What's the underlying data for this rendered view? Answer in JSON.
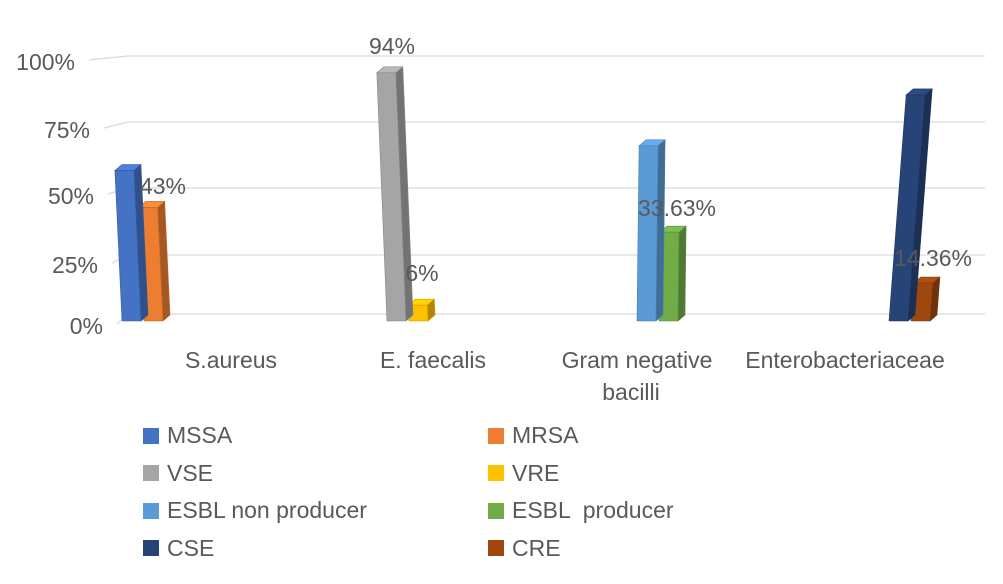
{
  "chart_data": {
    "type": "bar",
    "style": "3d-clustered-column",
    "title": "",
    "xlabel": "",
    "ylabel": "",
    "ylim": [
      0,
      100
    ],
    "yticks": [
      "0%",
      "25%",
      "50%",
      "75%",
      "100%"
    ],
    "grid": true,
    "legend_position": "bottom-two-columns",
    "text_color": "#595959",
    "gridline_color": "#D9D9D9",
    "background_color": "#FFFFFF",
    "categories": [
      "S.aureus",
      "E. faecalis",
      "Gram negative bacilli",
      "Enterobacteriaceae"
    ],
    "series": [
      {
        "name": "MSSA",
        "color": "#4472C4",
        "category_index": 0,
        "value": 57,
        "data_label": ""
      },
      {
        "name": "MRSA",
        "color": "#ED7D31",
        "category_index": 0,
        "value": 43,
        "data_label": "43%"
      },
      {
        "name": "VSE",
        "color": "#A5A5A5",
        "category_index": 1,
        "value": 94,
        "data_label": "94%"
      },
      {
        "name": "VRE",
        "color": "#FFC000",
        "category_index": 1,
        "value": 6,
        "data_label": "6%"
      },
      {
        "name": "ESBL non producer",
        "color": "#5B9BD5",
        "category_index": 2,
        "value": 66.37,
        "data_label": ""
      },
      {
        "name": "ESBL  producer",
        "color": "#70AD47",
        "category_index": 2,
        "value": 33.63,
        "data_label": "33.63%"
      },
      {
        "name": "CSE",
        "color": "#264478",
        "category_index": 3,
        "value": 85.64,
        "data_label": ""
      },
      {
        "name": "CRE",
        "color": "#9E480E",
        "category_index": 3,
        "value": 14.36,
        "data_label": "14.36%"
      }
    ]
  }
}
